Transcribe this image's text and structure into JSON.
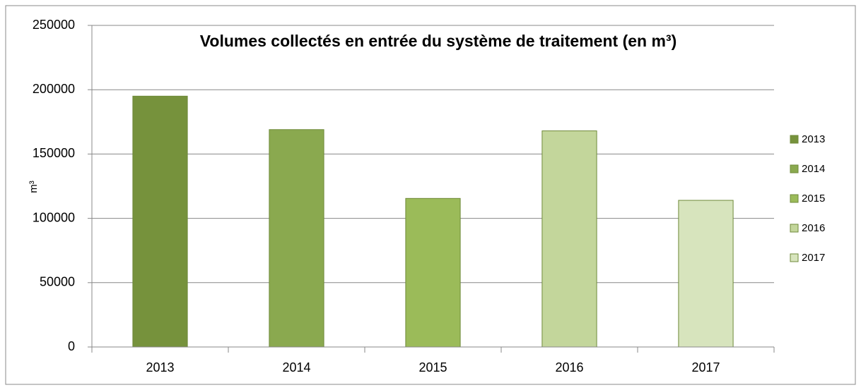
{
  "chart_data": {
    "type": "bar",
    "title": "Volumes collectés en entrée du système de traitement (en m³)",
    "y_label": "m³",
    "categories": [
      "2013",
      "2014",
      "2015",
      "2016",
      "2017"
    ],
    "values": [
      195000,
      169000,
      115500,
      168000,
      114000
    ],
    "colors": [
      "#76923c",
      "#8aa94f",
      "#9bbb59",
      "#c3d69b",
      "#d7e4bd"
    ],
    "ylim": [
      0,
      250000
    ],
    "yticks": [
      0,
      50000,
      100000,
      150000,
      200000,
      250000
    ],
    "grid": true,
    "legend": "right"
  }
}
